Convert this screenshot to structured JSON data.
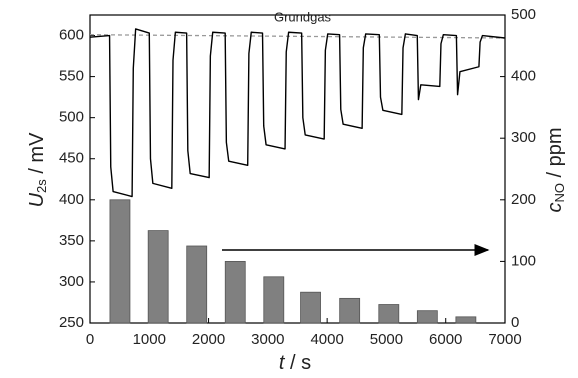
{
  "chart_data": {
    "type": "line",
    "x_label": [
      "t",
      " / s"
    ],
    "y_label": [
      "U",
      "2s",
      " / mV"
    ],
    "y2_label": [
      "c",
      "NO",
      " / ppm"
    ],
    "xlim": [
      0,
      7000
    ],
    "xticks": [
      0,
      1000,
      2000,
      3000,
      4000,
      5000,
      6000,
      7000
    ],
    "ylim": [
      250,
      625
    ],
    "yticks": [
      250,
      300,
      350,
      400,
      450,
      500,
      550,
      600
    ],
    "y2lim": [
      0,
      500
    ],
    "y2ticks": [
      0,
      100,
      200,
      300,
      400,
      500
    ],
    "reference": {
      "name": "Grundgas",
      "color": "#999999",
      "x": [
        0,
        7000
      ],
      "values": [
        601,
        597
      ]
    },
    "series": [
      {
        "type": "line",
        "color": "#000000",
        "x": [
          0,
          330,
          350,
          390,
          710,
          730,
          770,
          1000,
          1020,
          1060,
          1380,
          1400,
          1440,
          1630,
          1650,
          1690,
          2010,
          2030,
          2070,
          2280,
          2300,
          2340,
          2660,
          2680,
          2720,
          2910,
          2930,
          2970,
          3290,
          3310,
          3350,
          3570,
          3590,
          3630,
          3950,
          3970,
          4010,
          4210,
          4230,
          4270,
          4590,
          4610,
          4650,
          4880,
          4900,
          4940,
          5260,
          5280,
          5320,
          5520,
          5540,
          5580,
          5900,
          5920,
          5960,
          6180,
          6200,
          6240,
          6560,
          6580,
          6620,
          7000
        ],
        "values": [
          598,
          600,
          440,
          410,
          404,
          560,
          608,
          603,
          450,
          420,
          414,
          570,
          604,
          603,
          460,
          432,
          427,
          575,
          604,
          603,
          470,
          447,
          442,
          578,
          604,
          603,
          490,
          467,
          462,
          580,
          604,
          603,
          500,
          479,
          474,
          582,
          602,
          601,
          510,
          492,
          487,
          585,
          602,
          601,
          525,
          509,
          504,
          585,
          602,
          600,
          522,
          540,
          538,
          590,
          601,
          600,
          528,
          556,
          562,
          592,
          600,
          597
        ]
      },
      {
        "type": "bar",
        "axis": "y2",
        "color": "#808080",
        "x": [
          505,
          1150,
          1800,
          2450,
          3100,
          3720,
          4380,
          5040,
          5690,
          6340
        ],
        "values": [
          200,
          150,
          125,
          100,
          75,
          50,
          40,
          30,
          20,
          10
        ]
      }
    ]
  }
}
